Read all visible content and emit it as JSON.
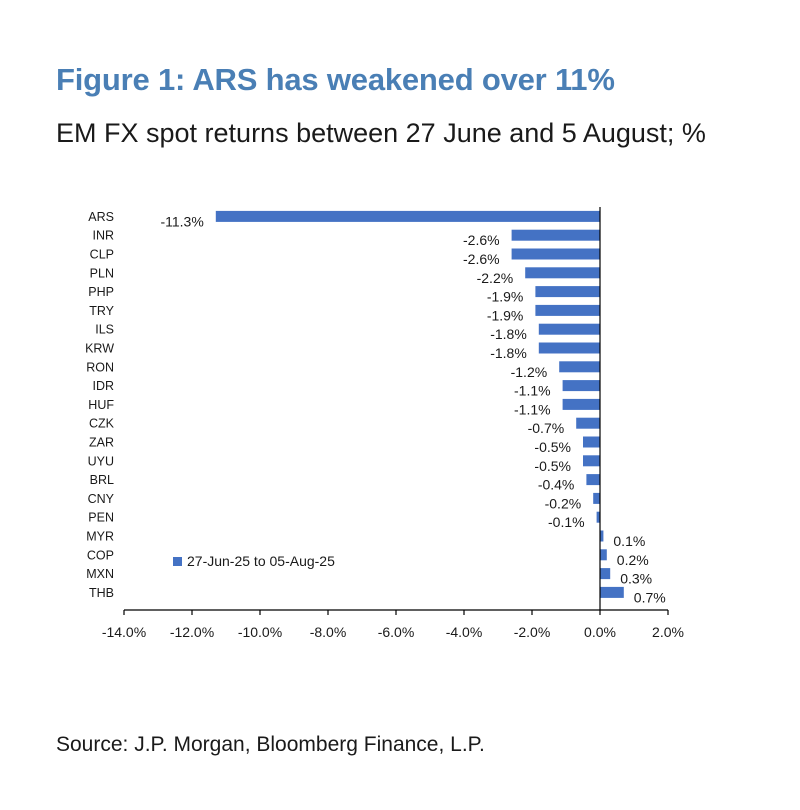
{
  "header": {
    "title": "Figure 1: ARS has weakened over 11%",
    "subtitle": "EM FX spot returns between 27 June and 5 August; %"
  },
  "footer": {
    "source": "Source: J.P. Morgan, Bloomberg Finance, L.P."
  },
  "colors": {
    "bar": "#4472c4",
    "title": "#4a7fb5",
    "axis": "#000000"
  },
  "chart_data": {
    "type": "bar",
    "orientation": "horizontal",
    "title": "Figure 1: ARS has weakened over 11%",
    "subtitle": "EM FX spot returns between 27 June and 5 August; %",
    "categories": [
      "ARS",
      "INR",
      "CLP",
      "PLN",
      "PHP",
      "TRY",
      "ILS",
      "KRW",
      "RON",
      "IDR",
      "HUF",
      "CZK",
      "ZAR",
      "UYU",
      "BRL",
      "CNY",
      "PEN",
      "MYR",
      "COP",
      "MXN",
      "THB"
    ],
    "series": [
      {
        "name": "27-Jun-25 to 05-Aug-25",
        "values": [
          -11.3,
          -2.6,
          -2.6,
          -2.2,
          -1.9,
          -1.9,
          -1.8,
          -1.8,
          -1.2,
          -1.1,
          -1.1,
          -0.7,
          -0.5,
          -0.5,
          -0.4,
          -0.2,
          -0.1,
          0.1,
          0.2,
          0.3,
          0.7
        ],
        "labels": [
          "-11.3%",
          "-2.6%",
          "-2.6%",
          "-2.2%",
          "-1.9%",
          "-1.9%",
          "-1.8%",
          "-1.8%",
          "-1.2%",
          "-1.1%",
          "-1.1%",
          "-0.7%",
          "-0.5%",
          "-0.5%",
          "-0.4%",
          "-0.2%",
          "-0.1%",
          "0.1%",
          "0.2%",
          "0.3%",
          "0.7%"
        ]
      }
    ],
    "xlim": [
      -14,
      2
    ],
    "xticks": [
      -14,
      -12,
      -10,
      -8,
      -6,
      -4,
      -2,
      0,
      2
    ],
    "xtick_labels": [
      "-14.0%",
      "-12.0%",
      "-10.0%",
      "-8.0%",
      "-6.0%",
      "-4.0%",
      "-2.0%",
      "0.0%",
      "2.0%"
    ],
    "xlabel": "",
    "ylabel": "",
    "grid": false,
    "legend": {
      "position": "bottom-left",
      "entries": [
        "27-Jun-25 to 05-Aug-25"
      ]
    }
  }
}
